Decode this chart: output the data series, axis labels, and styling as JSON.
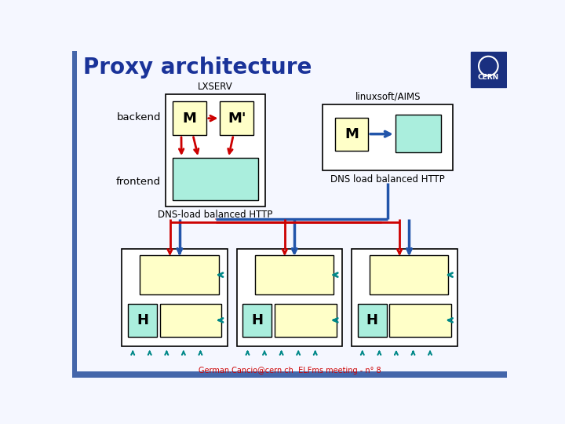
{
  "title": "Proxy architecture",
  "title_color": "#1a3399",
  "bg_color": "#f5f7ff",
  "slide_bg": "#f5f7ff",
  "border_color": "#4466aa",
  "lxserv_label": "LXSERV",
  "backend_label": "backend",
  "frontend_label": "frontend",
  "linuxsoft_label": "linuxsoft/AIMS",
  "dns_load_label": "DNS-load balanced HTTP",
  "dns_load_label2": "DNS load balanced HTTP",
  "yellow_box_color": "#ffffc8",
  "green_box_color": "#aaeedd",
  "red_arrow_color": "#cc0000",
  "blue_arrow_color": "#2255aa",
  "teal_arrow_color": "#008888",
  "footer_text": "German.Cancio@cern.ch  ELFms meeting - n° 8",
  "footer_link": "German.Cancio@cern.ch",
  "footer_color": "#cc0000",
  "h_label": "H",
  "m_label": "M",
  "m_prime_label": "M'"
}
